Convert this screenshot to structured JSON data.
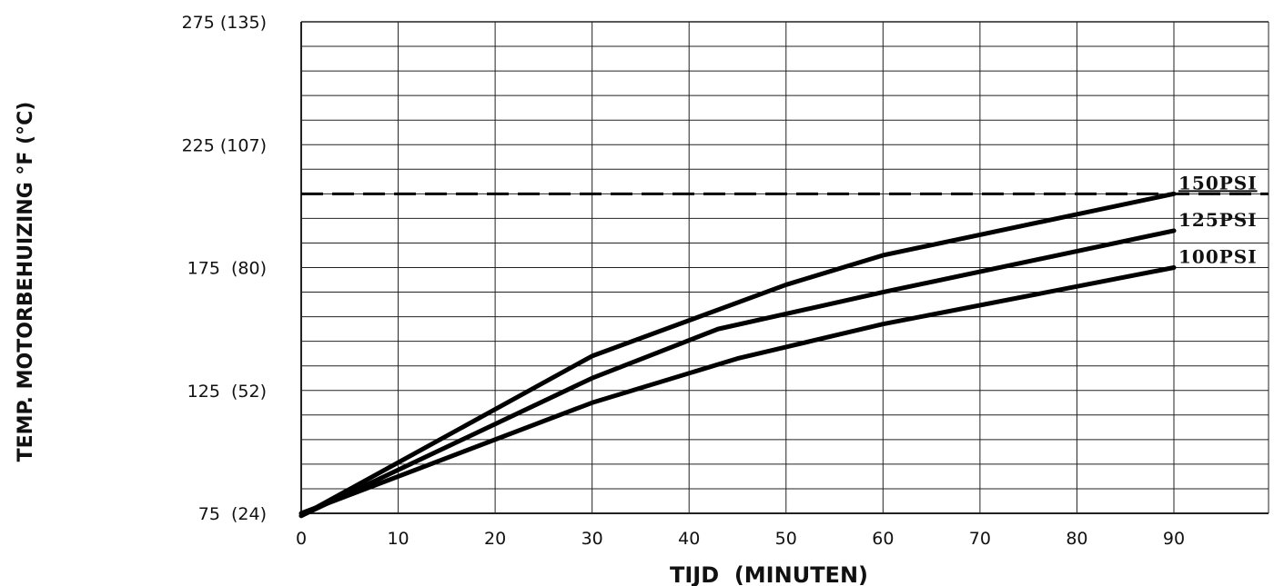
{
  "chart_data": {
    "type": "line",
    "title": "",
    "xlabel": "TIJD  (MINUTEN)",
    "ylabel": "TEMP. MOTORBEHUIZING °F (°C)",
    "xlim": [
      0,
      90
    ],
    "ylim": [
      75,
      275
    ],
    "x_ticks": [
      "0",
      "10",
      "20",
      "30",
      "40",
      "50",
      "60",
      "70",
      "80",
      "90"
    ],
    "y_ticks": [
      {
        "value": 75,
        "label": "75  (24)"
      },
      {
        "value": 125,
        "label": "125  (52)"
      },
      {
        "value": 175,
        "label": "175  (80)"
      },
      {
        "value": 225,
        "label": "225 (107)"
      },
      {
        "value": 275,
        "label": "275 (135)"
      }
    ],
    "grid": true,
    "reference_line": {
      "y": 205,
      "style": "dashed"
    },
    "series": [
      {
        "name": "150PSI",
        "x": [
          0,
          30,
          50,
          60,
          90
        ],
        "y": [
          74,
          139,
          168,
          180,
          205
        ]
      },
      {
        "name": "125PSI",
        "x": [
          0,
          30,
          43,
          60,
          90
        ],
        "y": [
          74,
          130,
          150,
          165,
          190
        ]
      },
      {
        "name": "100PSI",
        "x": [
          0,
          30,
          45,
          60,
          90
        ],
        "y": [
          75,
          120,
          138,
          152,
          175
        ]
      }
    ]
  }
}
